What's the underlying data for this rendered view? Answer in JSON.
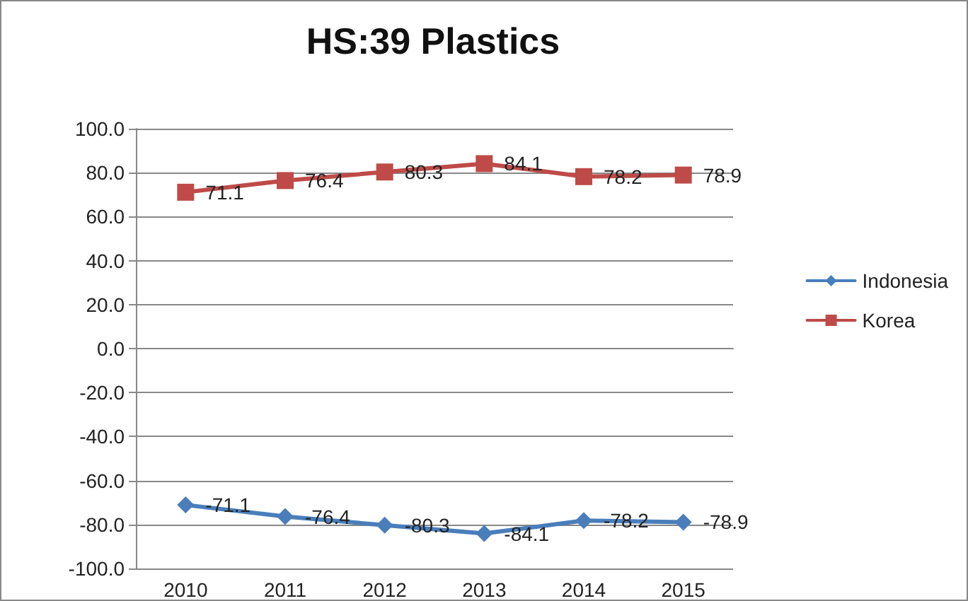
{
  "chart_data": {
    "type": "line",
    "title": "HS:39 Plastics",
    "categories": [
      "2010",
      "2011",
      "2012",
      "2013",
      "2014",
      "2015"
    ],
    "series": [
      {
        "name": "Indonesia",
        "color": "#4a7ebb",
        "marker": "diamond",
        "values": [
          -71.1,
          -76.4,
          -80.3,
          -84.1,
          -78.2,
          -78.9
        ]
      },
      {
        "name": "Korea",
        "color": "#be4b48",
        "marker": "square",
        "values": [
          71.1,
          76.4,
          80.3,
          84.1,
          78.2,
          78.9
        ]
      }
    ],
    "ylim": [
      -100,
      100
    ],
    "yticks": [
      {
        "value": -100,
        "label": "-100.0"
      },
      {
        "value": -80,
        "label": "-80.0"
      },
      {
        "value": -60,
        "label": "-60.0"
      },
      {
        "value": -40,
        "label": "-40.0"
      },
      {
        "value": -20,
        "label": "-20.0"
      },
      {
        "value": 0,
        "label": "0.0"
      },
      {
        "value": 20,
        "label": "20.0"
      },
      {
        "value": 40,
        "label": "40.0"
      },
      {
        "value": 60,
        "label": "60.0"
      },
      {
        "value": 80,
        "label": "80.0"
      },
      {
        "value": 100,
        "label": "100.0"
      }
    ],
    "grid": "y",
    "legend": "right",
    "data_labels": true,
    "line_style": "solid"
  }
}
